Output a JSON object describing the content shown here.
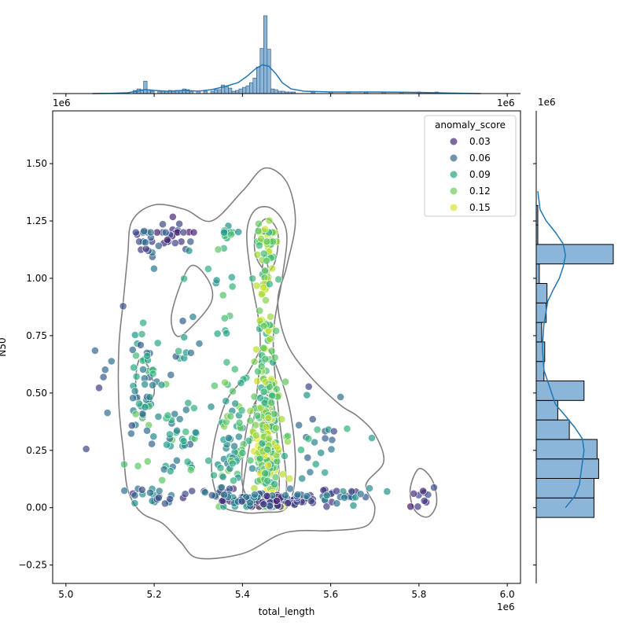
{
  "chart_data": {
    "type": "scatter",
    "main": {
      "xlabel": "total_length",
      "ylabel": "N50",
      "x_offset_label": "1e6",
      "y_offset_label": "1e6",
      "xlim": [
        4.97,
        6.03
      ],
      "ylim": [
        -0.33,
        1.73
      ],
      "xticks": [
        {
          "v": 5.0,
          "label": "5.0"
        },
        {
          "v": 5.2,
          "label": "5.2"
        },
        {
          "v": 5.4,
          "label": "5.4"
        },
        {
          "v": 5.6,
          "label": "5.6"
        },
        {
          "v": 5.8,
          "label": "5.8"
        },
        {
          "v": 6.0,
          "label": "6.0"
        }
      ],
      "yticks": [
        {
          "v": -0.25,
          "label": "−0.25"
        },
        {
          "v": 0.0,
          "label": "0.00"
        },
        {
          "v": 0.25,
          "label": "0.25"
        },
        {
          "v": 0.5,
          "label": "0.50"
        },
        {
          "v": 0.75,
          "label": "0.75"
        },
        {
          "v": 1.0,
          "label": "1.00"
        },
        {
          "v": 1.25,
          "label": "1.25"
        },
        {
          "v": 1.5,
          "label": "1.50"
        }
      ]
    },
    "legend": {
      "title": "anomaly_score",
      "position": "top-right",
      "entries": [
        {
          "label": "0.03",
          "color": "#482878"
        },
        {
          "label": "0.06",
          "color": "#31688e"
        },
        {
          "label": "0.09",
          "color": "#26a185"
        },
        {
          "label": "0.12",
          "color": "#6ece58"
        },
        {
          "label": "0.15",
          "color": "#d6e22c"
        }
      ]
    },
    "colormap": [
      "#440154",
      "#482878",
      "#3e4989",
      "#31688e",
      "#26828e",
      "#1f9e89",
      "#35b779",
      "#6ece58",
      "#b5de2b",
      "#fde725"
    ],
    "score_range": [
      0.0,
      0.17
    ],
    "clusters": [
      {
        "cx": 5.455,
        "cy": 0.28,
        "sx": 0.018,
        "sy": 0.14,
        "n": 170,
        "smin": 0.1,
        "smax": 0.17
      },
      {
        "cx": 5.455,
        "cy": 0.6,
        "sx": 0.012,
        "sy": 0.2,
        "n": 55,
        "smin": 0.1,
        "smax": 0.16
      },
      {
        "cx": 5.455,
        "cy": 0.03,
        "sx": 0.045,
        "sy": 0.015,
        "n": 85,
        "smin": 0.01,
        "smax": 0.05
      },
      {
        "cx": 5.37,
        "cy": 0.27,
        "sx": 0.022,
        "sy": 0.13,
        "n": 60,
        "smin": 0.07,
        "smax": 0.14
      },
      {
        "cx": 5.455,
        "cy": 1.15,
        "sx": 0.012,
        "sy": 0.08,
        "n": 45,
        "smin": 0.11,
        "smax": 0.16
      },
      {
        "cx": 5.45,
        "cy": 0.9,
        "sx": 0.01,
        "sy": 0.12,
        "n": 30,
        "smin": 0.11,
        "smax": 0.16
      },
      {
        "cx": 5.37,
        "cy": 0.05,
        "sx": 0.05,
        "sy": 0.02,
        "n": 40,
        "smin": 0.02,
        "smax": 0.08
      },
      {
        "cx": 5.175,
        "cy": 0.55,
        "sx": 0.018,
        "sy": 0.12,
        "n": 45,
        "smin": 0.04,
        "smax": 0.12
      },
      {
        "cx": 5.25,
        "cy": 0.3,
        "sx": 0.035,
        "sy": 0.1,
        "n": 45,
        "smin": 0.05,
        "smax": 0.13
      },
      {
        "cx": 5.25,
        "cy": 1.15,
        "sx": 0.03,
        "sy": 0.05,
        "n": 25,
        "smin": 0.01,
        "smax": 0.06
      },
      {
        "cx": 5.18,
        "cy": 1.1,
        "sx": 0.015,
        "sy": 0.06,
        "n": 18,
        "smin": 0.02,
        "smax": 0.07
      },
      {
        "cx": 5.2,
        "cy": 0.05,
        "sx": 0.03,
        "sy": 0.02,
        "n": 20,
        "smin": 0.02,
        "smax": 0.09
      },
      {
        "cx": 5.6,
        "cy": 0.05,
        "sx": 0.06,
        "sy": 0.02,
        "n": 35,
        "smin": 0.02,
        "smax": 0.09
      },
      {
        "cx": 5.58,
        "cy": 0.3,
        "sx": 0.05,
        "sy": 0.1,
        "n": 25,
        "smin": 0.03,
        "smax": 0.12
      },
      {
        "cx": 5.37,
        "cy": 1.18,
        "sx": 0.012,
        "sy": 0.03,
        "n": 12,
        "smin": 0.08,
        "smax": 0.12
      },
      {
        "cx": 5.37,
        "cy": 0.75,
        "sx": 0.015,
        "sy": 0.2,
        "n": 18,
        "smin": 0.08,
        "smax": 0.13
      },
      {
        "cx": 5.81,
        "cy": 0.05,
        "sx": 0.02,
        "sy": 0.03,
        "n": 10,
        "smin": 0.01,
        "smax": 0.05
      },
      {
        "cx": 5.27,
        "cy": 0.8,
        "sx": 0.02,
        "sy": 0.2,
        "n": 18,
        "smin": 0.05,
        "smax": 0.11
      },
      {
        "cx": 5.08,
        "cy": 0.5,
        "sx": 0.02,
        "sy": 0.2,
        "n": 8,
        "smin": 0.03,
        "smax": 0.07
      }
    ],
    "kde_contours": [
      [
        [
          5.15,
          1.25
        ],
        [
          5.2,
          1.32
        ],
        [
          5.27,
          1.3
        ],
        [
          5.33,
          1.25
        ],
        [
          5.4,
          1.38
        ],
        [
          5.45,
          1.48
        ],
        [
          5.5,
          1.42
        ],
        [
          5.52,
          1.25
        ],
        [
          5.5,
          1.05
        ],
        [
          5.48,
          0.9
        ],
        [
          5.5,
          0.72
        ],
        [
          5.55,
          0.58
        ],
        [
          5.62,
          0.45
        ],
        [
          5.66,
          0.4
        ],
        [
          5.7,
          0.32
        ],
        [
          5.72,
          0.2
        ],
        [
          5.68,
          0.1
        ],
        [
          5.7,
          0.0
        ],
        [
          5.68,
          -0.08
        ],
        [
          5.6,
          -0.1
        ],
        [
          5.53,
          -0.1
        ],
        [
          5.48,
          -0.12
        ],
        [
          5.4,
          -0.2
        ],
        [
          5.3,
          -0.22
        ],
        [
          5.26,
          -0.15
        ],
        [
          5.22,
          -0.07
        ],
        [
          5.17,
          -0.02
        ],
        [
          5.14,
          0.08
        ],
        [
          5.13,
          0.25
        ],
        [
          5.12,
          0.45
        ],
        [
          5.12,
          0.7
        ],
        [
          5.13,
          0.9
        ],
        [
          5.14,
          1.1
        ]
      ],
      [
        [
          5.4,
          0.05
        ],
        [
          5.43,
          0.45
        ],
        [
          5.44,
          0.75
        ],
        [
          5.42,
          1.0
        ],
        [
          5.41,
          1.2
        ],
        [
          5.43,
          1.3
        ],
        [
          5.47,
          1.3
        ],
        [
          5.5,
          1.2
        ],
        [
          5.49,
          1.0
        ],
        [
          5.47,
          0.75
        ],
        [
          5.48,
          0.45
        ],
        [
          5.5,
          0.1
        ],
        [
          5.48,
          0.0
        ],
        [
          5.43,
          0.0
        ]
      ],
      [
        [
          5.35,
          0.02
        ],
        [
          5.33,
          0.2
        ],
        [
          5.36,
          0.45
        ],
        [
          5.41,
          0.58
        ],
        [
          5.45,
          0.7
        ],
        [
          5.48,
          0.6
        ],
        [
          5.51,
          0.4
        ],
        [
          5.52,
          0.15
        ],
        [
          5.5,
          0.0
        ],
        [
          5.45,
          -0.02
        ],
        [
          5.4,
          -0.02
        ]
      ],
      [
        [
          5.4,
          0.1
        ],
        [
          5.41,
          0.35
        ],
        [
          5.44,
          0.49
        ],
        [
          5.47,
          0.45
        ],
        [
          5.48,
          0.25
        ],
        [
          5.48,
          0.05
        ],
        [
          5.44,
          0.0
        ]
      ],
      [
        [
          5.43,
          1.1
        ],
        [
          5.43,
          1.2
        ],
        [
          5.455,
          1.26
        ],
        [
          5.48,
          1.2
        ],
        [
          5.475,
          1.08
        ],
        [
          5.455,
          1.03
        ]
      ],
      [
        [
          5.445,
          1.02
        ],
        [
          5.45,
          1.1
        ],
        [
          5.46,
          1.02
        ],
        [
          5.453,
          0.97
        ]
      ],
      [
        [
          5.24,
          0.85
        ],
        [
          5.28,
          1.05
        ],
        [
          5.32,
          1.0
        ],
        [
          5.33,
          0.9
        ],
        [
          5.28,
          0.78
        ],
        [
          5.25,
          0.75
        ]
      ],
      [
        [
          5.16,
          0.6
        ],
        [
          5.17,
          0.65
        ],
        [
          5.19,
          0.6
        ],
        [
          5.2,
          0.5
        ],
        [
          5.18,
          0.45
        ],
        [
          5.16,
          0.5
        ]
      ],
      [
        [
          5.78,
          0.08
        ],
        [
          5.8,
          0.17
        ],
        [
          5.83,
          0.12
        ],
        [
          5.84,
          0.02
        ],
        [
          5.82,
          -0.04
        ],
        [
          5.79,
          -0.01
        ]
      ]
    ],
    "top_hist": {
      "bins": [
        {
          "x": 5.156,
          "h": 0.04
        },
        {
          "x": 5.165,
          "h": 0.06
        },
        {
          "x": 5.172,
          "h": 0.05
        },
        {
          "x": 5.18,
          "h": 0.16
        },
        {
          "x": 5.188,
          "h": 0.05
        },
        {
          "x": 5.196,
          "h": 0.03
        },
        {
          "x": 5.212,
          "h": 0.03
        },
        {
          "x": 5.22,
          "h": 0.03
        },
        {
          "x": 5.228,
          "h": 0.03
        },
        {
          "x": 5.236,
          "h": 0.04
        },
        {
          "x": 5.244,
          "h": 0.03
        },
        {
          "x": 5.252,
          "h": 0.04
        },
        {
          "x": 5.26,
          "h": 0.04
        },
        {
          "x": 5.268,
          "h": 0.06
        },
        {
          "x": 5.276,
          "h": 0.05
        },
        {
          "x": 5.284,
          "h": 0.03
        },
        {
          "x": 5.3,
          "h": 0.03
        },
        {
          "x": 5.316,
          "h": 0.03
        },
        {
          "x": 5.332,
          "h": 0.03
        },
        {
          "x": 5.34,
          "h": 0.05
        },
        {
          "x": 5.348,
          "h": 0.05
        },
        {
          "x": 5.356,
          "h": 0.11
        },
        {
          "x": 5.364,
          "h": 0.09
        },
        {
          "x": 5.372,
          "h": 0.07
        },
        {
          "x": 5.38,
          "h": 0.03
        },
        {
          "x": 5.388,
          "h": 0.04
        },
        {
          "x": 5.396,
          "h": 0.06
        },
        {
          "x": 5.404,
          "h": 0.08
        },
        {
          "x": 5.412,
          "h": 0.1
        },
        {
          "x": 5.42,
          "h": 0.14
        },
        {
          "x": 5.428,
          "h": 0.2
        },
        {
          "x": 5.436,
          "h": 0.34
        },
        {
          "x": 5.444,
          "h": 0.58
        },
        {
          "x": 5.452,
          "h": 1.0
        },
        {
          "x": 5.46,
          "h": 0.57
        },
        {
          "x": 5.468,
          "h": 0.06
        },
        {
          "x": 5.476,
          "h": 0.05
        },
        {
          "x": 5.484,
          "h": 0.03
        },
        {
          "x": 5.492,
          "h": 0.03
        },
        {
          "x": 5.5,
          "h": 0.02
        },
        {
          "x": 5.508,
          "h": 0.02
        },
        {
          "x": 5.516,
          "h": 0.02
        },
        {
          "x": 5.56,
          "h": 0.02
        },
        {
          "x": 5.6,
          "h": 0.02
        },
        {
          "x": 5.64,
          "h": 0.02
        },
        {
          "x": 5.68,
          "h": 0.02
        },
        {
          "x": 5.72,
          "h": 0.02
        },
        {
          "x": 5.76,
          "h": 0.02
        },
        {
          "x": 5.8,
          "h": 0.02
        },
        {
          "x": 5.84,
          "h": 0.02
        }
      ],
      "bin_width": 0.008,
      "kde": [
        [
          5.06,
          0.0
        ],
        [
          5.1,
          0.003
        ],
        [
          5.14,
          0.01
        ],
        [
          5.16,
          0.03
        ],
        [
          5.18,
          0.05
        ],
        [
          5.2,
          0.04
        ],
        [
          5.23,
          0.03
        ],
        [
          5.27,
          0.04
        ],
        [
          5.3,
          0.03
        ],
        [
          5.33,
          0.05
        ],
        [
          5.36,
          0.09
        ],
        [
          5.39,
          0.14
        ],
        [
          5.41,
          0.22
        ],
        [
          5.43,
          0.32
        ],
        [
          5.445,
          0.37
        ],
        [
          5.46,
          0.35
        ],
        [
          5.475,
          0.26
        ],
        [
          5.49,
          0.14
        ],
        [
          5.51,
          0.06
        ],
        [
          5.54,
          0.03
        ],
        [
          5.6,
          0.02
        ],
        [
          5.7,
          0.02
        ],
        [
          5.8,
          0.015
        ],
        [
          5.88,
          0.005
        ],
        [
          5.94,
          0.0
        ]
      ]
    },
    "right_hist": {
      "bins": [
        {
          "y": 0.0,
          "h": 0.75
        },
        {
          "y": 0.085,
          "h": 0.75
        },
        {
          "y": 0.17,
          "h": 0.81
        },
        {
          "y": 0.255,
          "h": 0.79
        },
        {
          "y": 0.34,
          "h": 0.43
        },
        {
          "y": 0.425,
          "h": 0.28
        },
        {
          "y": 0.51,
          "h": 0.62
        },
        {
          "y": 0.595,
          "h": 0.1
        },
        {
          "y": 0.68,
          "h": 0.11
        },
        {
          "y": 0.765,
          "h": 0.07
        },
        {
          "y": 0.85,
          "h": 0.13
        },
        {
          "y": 0.935,
          "h": 0.14
        },
        {
          "y": 1.02,
          "h": 0.04
        },
        {
          "y": 1.105,
          "h": 1.0
        },
        {
          "y": 1.19,
          "h": 0.02
        },
        {
          "y": 1.275,
          "h": 0.02
        }
      ],
      "bin_width": 0.085,
      "kde": [
        [
          -0.0,
          0.38
        ],
        [
          0.05,
          0.5
        ],
        [
          0.1,
          0.56
        ],
        [
          0.15,
          0.58
        ],
        [
          0.2,
          0.6
        ],
        [
          0.25,
          0.62
        ],
        [
          0.3,
          0.6
        ],
        [
          0.35,
          0.5
        ],
        [
          0.4,
          0.38
        ],
        [
          0.45,
          0.25
        ],
        [
          0.5,
          0.2
        ],
        [
          0.55,
          0.15
        ],
        [
          0.6,
          0.1
        ],
        [
          0.7,
          0.08
        ],
        [
          0.8,
          0.1
        ],
        [
          0.9,
          0.15
        ],
        [
          0.95,
          0.22
        ],
        [
          1.0,
          0.3
        ],
        [
          1.05,
          0.35
        ],
        [
          1.1,
          0.38
        ],
        [
          1.15,
          0.35
        ],
        [
          1.2,
          0.25
        ],
        [
          1.25,
          0.13
        ],
        [
          1.3,
          0.05
        ],
        [
          1.38,
          0.02
        ]
      ]
    }
  }
}
